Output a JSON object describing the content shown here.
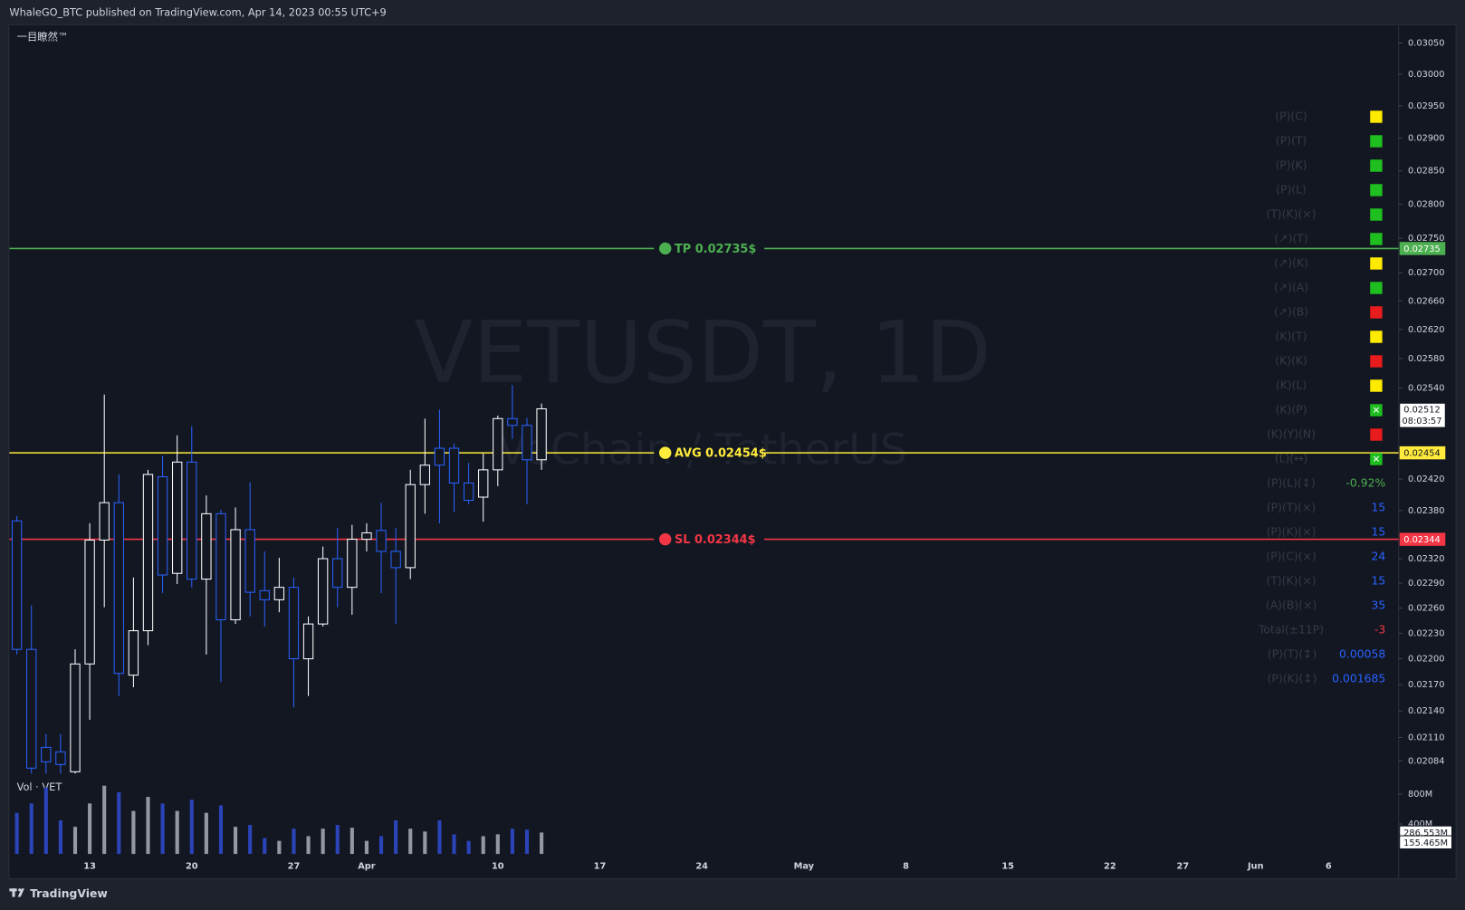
{
  "header": "WhaleGO_BTC published on TradingView.com, Apr 14, 2023 00:55 UTC+9",
  "brand": "TradingView",
  "chart_data": {
    "type": "candlestick",
    "indicator_name": "一目瞭然™",
    "watermark": "VETUSDT, 1D",
    "watermark_subtitle": "VeChain / TetherUS",
    "yscale": "log",
    "grid": false,
    "up_color": "#ffffff",
    "down_color": "#2962ff",
    "ylim": [
      0.0207,
      0.0308
    ],
    "yticks": [
      {
        "value": 0.0305,
        "label": "0.03050"
      },
      {
        "value": 0.03,
        "label": "0.03000"
      },
      {
        "value": 0.0295,
        "label": "0.02950"
      },
      {
        "value": 0.029,
        "label": "0.02900"
      },
      {
        "value": 0.0285,
        "label": "0.02850"
      },
      {
        "value": 0.028,
        "label": "0.02800"
      },
      {
        "value": 0.0275,
        "label": "0.02750"
      },
      {
        "value": 0.027,
        "label": "0.02700"
      },
      {
        "value": 0.0266,
        "label": "0.02660"
      },
      {
        "value": 0.0262,
        "label": "0.02620"
      },
      {
        "value": 0.0258,
        "label": "0.02580"
      },
      {
        "value": 0.0254,
        "label": "0.02540"
      },
      {
        "value": 0.0242,
        "label": "0.02420"
      },
      {
        "value": 0.0238,
        "label": "0.02380"
      },
      {
        "value": 0.0232,
        "label": "0.02320"
      },
      {
        "value": 0.0229,
        "label": "0.02290"
      },
      {
        "value": 0.0226,
        "label": "0.02260"
      },
      {
        "value": 0.0223,
        "label": "0.02230"
      },
      {
        "value": 0.022,
        "label": "0.02200"
      },
      {
        "value": 0.0217,
        "label": "0.02170"
      },
      {
        "value": 0.0214,
        "label": "0.02140"
      },
      {
        "value": 0.0211,
        "label": "0.02110"
      },
      {
        "value": 0.02084,
        "label": "0.02084"
      }
    ],
    "categories": [
      null,
      null,
      null,
      null,
      null,
      "13",
      null,
      null,
      null,
      null,
      null,
      null,
      "20",
      null,
      null,
      null,
      null,
      null,
      null,
      "27",
      null,
      null,
      null,
      null,
      "Apr",
      null,
      null,
      null,
      null,
      null,
      null,
      null,
      null,
      "10",
      null,
      null,
      null,
      null,
      null,
      null,
      "17",
      null,
      null,
      null,
      null,
      null,
      null,
      "24",
      null,
      null,
      null,
      null,
      null,
      null,
      "May",
      null,
      null,
      null,
      null,
      null,
      null,
      "8",
      null,
      null,
      null,
      null,
      null,
      null,
      "15",
      null,
      null,
      null,
      null,
      null,
      null,
      "22",
      null,
      null,
      null,
      null,
      "27",
      null,
      null,
      null,
      null,
      "Jun",
      null,
      null,
      null,
      null,
      "6"
    ],
    "open": [
      0.02367,
      0.02211,
      0.02099,
      0.02094,
      0.02072,
      0.02194,
      0.02343,
      0.0239,
      0.02181,
      0.02233,
      0.02423,
      0.02302,
      0.02442,
      0.02295,
      0.02376,
      0.02246,
      0.02356,
      0.02281,
      0.0227,
      0.02285,
      0.022,
      0.02241,
      0.0232,
      0.02285,
      0.02344,
      0.02355,
      0.02329,
      0.02309,
      0.02413,
      0.0246,
      0.0246,
      0.02415,
      0.02397,
      0.02432,
      0.02499,
      0.0249,
      0.02445,
      null,
      null,
      null,
      null,
      null,
      null,
      null,
      null,
      null,
      null,
      null,
      null,
      null,
      null,
      null,
      null,
      null,
      null,
      null,
      null,
      null,
      null,
      null,
      null,
      null,
      null,
      null,
      null,
      null,
      null,
      null,
      null,
      null,
      null,
      null,
      null,
      null,
      null,
      null,
      null,
      null,
      null,
      null,
      null,
      null,
      null,
      null,
      null,
      null,
      null,
      null,
      null,
      null,
      null
    ],
    "high": [
      0.02373,
      0.02263,
      0.02114,
      0.02114,
      0.02211,
      0.02364,
      0.02531,
      0.02426,
      0.02297,
      0.02432,
      0.0245,
      0.02477,
      0.02489,
      0.02399,
      0.02381,
      0.02384,
      0.02416,
      0.02329,
      0.02321,
      0.02297,
      0.0225,
      0.02335,
      0.02358,
      0.02362,
      0.02364,
      0.0239,
      0.02358,
      0.02432,
      0.02499,
      0.02511,
      0.02466,
      0.02441,
      0.02453,
      0.02503,
      0.02544,
      0.025,
      0.02519,
      null,
      null,
      null,
      null,
      null,
      null,
      null,
      null,
      null,
      null,
      null,
      null,
      null,
      null,
      null,
      null,
      null,
      null,
      null,
      null,
      null,
      null,
      null,
      null,
      null,
      null,
      null,
      null,
      null,
      null,
      null,
      null,
      null,
      null,
      null,
      null,
      null,
      null,
      null,
      null,
      null,
      null,
      null,
      null,
      null,
      null,
      null,
      null,
      null,
      null,
      null,
      null,
      null,
      null
    ],
    "low": [
      0.02205,
      0.0207,
      0.0207,
      0.0207,
      0.0207,
      0.0213,
      0.02261,
      0.02157,
      0.02167,
      0.02216,
      0.02278,
      0.02289,
      0.02285,
      0.02205,
      0.02173,
      0.02241,
      0.0225,
      0.02238,
      0.02255,
      0.02144,
      0.02157,
      0.02238,
      0.02261,
      0.02252,
      0.02329,
      0.02278,
      0.02241,
      0.02295,
      0.02376,
      0.02364,
      0.02378,
      0.02388,
      0.02366,
      0.02411,
      0.02472,
      0.02388,
      0.02432,
      null,
      null,
      null,
      null,
      null,
      null,
      null,
      null,
      null,
      null,
      null,
      null,
      null,
      null,
      null,
      null,
      null,
      null,
      null,
      null,
      null,
      null,
      null,
      null,
      null,
      null,
      null,
      null,
      null,
      null,
      null,
      null,
      null,
      null,
      null,
      null,
      null,
      null,
      null,
      null,
      null,
      null,
      null,
      null,
      null,
      null,
      null,
      null,
      null,
      null,
      null,
      null,
      null,
      null
    ],
    "close": [
      0.02211,
      0.02076,
      0.02083,
      0.0208,
      0.02194,
      0.02343,
      0.0239,
      0.02183,
      0.02233,
      0.02426,
      0.023,
      0.02442,
      0.02295,
      0.02376,
      0.02246,
      0.02356,
      0.02279,
      0.0227,
      0.02285,
      0.022,
      0.02241,
      0.0232,
      0.02285,
      0.02344,
      0.02352,
      0.02329,
      0.02309,
      0.02413,
      0.02438,
      0.02438,
      0.02415,
      0.02393,
      0.02432,
      0.02499,
      0.0249,
      0.02445,
      0.02512,
      null,
      null,
      null,
      null,
      null,
      null,
      null,
      null,
      null,
      null,
      null,
      null,
      null,
      null,
      null,
      null,
      null,
      null,
      null,
      null,
      null,
      null,
      null,
      null,
      null,
      null,
      null,
      null,
      null,
      null,
      null,
      null,
      null,
      null,
      null,
      null,
      null,
      null,
      null,
      null,
      null,
      null,
      null,
      null,
      null,
      null,
      null,
      null,
      null,
      null,
      null,
      null,
      null,
      null
    ],
    "levels": [
      {
        "label": "TP 0.02735$",
        "value": 0.02735,
        "axis_label": "0.02735",
        "color": "#4caf50"
      },
      {
        "label": "AVG 0.02454$",
        "value": 0.02454,
        "axis_label": "0.02454",
        "color": "#ffeb3b"
      },
      {
        "label": "SL 0.02344$",
        "value": 0.02344,
        "axis_label": "0.02344",
        "color": "#f23645"
      }
    ],
    "last_price": {
      "value": 0.02512,
      "label": "0.02512",
      "countdown": "08:03:57"
    },
    "volume": {
      "label": "Vol · VET",
      "up_color": "#9598a1",
      "down_color": "#2b44b8",
      "ylim": [
        0,
        925
      ],
      "yticks": [
        {
          "value": 800,
          "label": "800M"
        },
        {
          "value": 400,
          "label": "400M"
        }
      ],
      "values": [
        550,
        675,
        888,
        450,
        363,
        675,
        913,
        825,
        575,
        763,
        675,
        575,
        725,
        550,
        650,
        363,
        388,
        213,
        175,
        338,
        238,
        338,
        388,
        350,
        175,
        238,
        450,
        338,
        300,
        450,
        263,
        175,
        238,
        263,
        338,
        325,
        286.553,
        null,
        null,
        null,
        null,
        null,
        null,
        null,
        null,
        null,
        null,
        null,
        null,
        null,
        null,
        null,
        null,
        null,
        null,
        null,
        null,
        null,
        null,
        null,
        null,
        null,
        null,
        null,
        null,
        null,
        null,
        null,
        null,
        null,
        null,
        null,
        null,
        null,
        null,
        null,
        null,
        null,
        null,
        null,
        null,
        null,
        null,
        null,
        null,
        null,
        null,
        null,
        null,
        null,
        null
      ],
      "last_label": "286.553M",
      "ma": {
        "value": 155.465,
        "label": "155.465M"
      }
    }
  },
  "panel": [
    {
      "label": "(P)(C)",
      "color": "#ffeb00"
    },
    {
      "label": "(P)(T)",
      "color": "#1fbf1f"
    },
    {
      "label": "(P)(K)",
      "color": "#1fbf1f"
    },
    {
      "label": "(P)(L)",
      "color": "#1fbf1f"
    },
    {
      "label": "(T)(K)(×)",
      "color": "#1fbf1f"
    },
    {
      "label": "(↗)(T)",
      "color": "#1fbf1f"
    },
    {
      "label": "(↗)(K)",
      "color": "#ffeb00"
    },
    {
      "label": "(↗)(A)",
      "color": "#1fbf1f"
    },
    {
      "label": "(↗)(B)",
      "color": "#e81c1c"
    },
    {
      "label": "(K)(T)",
      "color": "#ffeb00"
    },
    {
      "label": "(K)(K)",
      "color": "#e81c1c"
    },
    {
      "label": "(K)(L)",
      "color": "#ffeb00"
    },
    {
      "label": "(K)(P)",
      "color": "#1fbf1f",
      "symbol": "✕"
    },
    {
      "label": "(K)(Y)(N)",
      "color": "#e81c1c"
    },
    {
      "label": "(L)(↔)",
      "color": "#1fbf1f",
      "symbol": "✕"
    },
    {
      "label": "(P)(L)(↕)",
      "value": "-0.92%",
      "color": "#4caf50"
    },
    {
      "label": "(P)(T)(×)",
      "value": "15",
      "color": "#2962ff"
    },
    {
      "label": "(P)(K)(×)",
      "value": "15",
      "color": "#2962ff"
    },
    {
      "label": "(P)(C)(×)",
      "value": "24",
      "color": "#2962ff"
    },
    {
      "label": "(T)(K)(×)",
      "value": "15",
      "color": "#2962ff"
    },
    {
      "label": "(A)(B)(×)",
      "value": "35",
      "color": "#2962ff"
    },
    {
      "label": "Total(±11P)",
      "value": "-3",
      "color": "#f23645"
    },
    {
      "label": "(P)(T)(↕)",
      "value": "0.00058",
      "color": "#2962ff"
    },
    {
      "label": "(P)(K)(↕)",
      "value": "0.001685",
      "color": "#2962ff"
    }
  ]
}
